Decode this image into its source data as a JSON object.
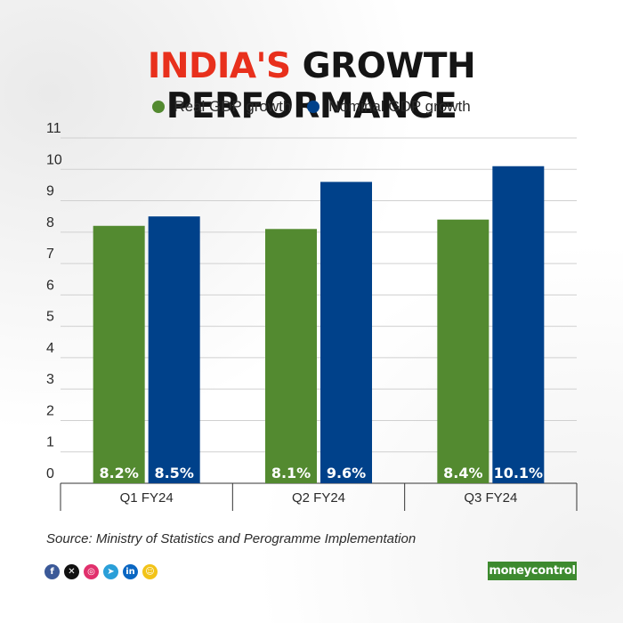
{
  "header": {
    "title_accent": "INDIA'S",
    "title_rest": "GROWTH PERFORMANCE"
  },
  "colors": {
    "real": "#538a30",
    "nominal": "#00418a",
    "accent": "#e8301c"
  },
  "chart_data": {
    "type": "bar",
    "title": "INDIA'S GROWTH PERFORMANCE",
    "categories": [
      "Q1 FY24",
      "Q2 FY24",
      "Q3 FY24"
    ],
    "series": [
      {
        "name": "Real GDP growth",
        "values": [
          8.2,
          8.1,
          8.4
        ],
        "labels": [
          "8.2%",
          "8.1%",
          "8.4%"
        ],
        "color": "#538a30"
      },
      {
        "name": "Nominal GDP growth",
        "values": [
          8.5,
          9.6,
          10.1
        ],
        "labels": [
          "8.5%",
          "9.6%",
          "10.1%"
        ],
        "color": "#00418a"
      }
    ],
    "yticks": [
      "0",
      "1",
      "2",
      "3",
      "4",
      "5",
      "6",
      "7",
      "8",
      "9",
      "10",
      "11"
    ],
    "ylim": [
      0,
      11
    ],
    "xlabel": "",
    "ylabel": "",
    "legend": "top-center",
    "grid": true
  },
  "footer": {
    "source": "Source: Ministry of Statistics and Perogramme Implementation",
    "brand": "moneycontrol",
    "social": [
      {
        "icon": "facebook-icon",
        "glyph": "f",
        "color": "#3b5998"
      },
      {
        "icon": "x-icon",
        "glyph": "✕",
        "color": "#111111"
      },
      {
        "icon": "instagram-icon",
        "glyph": "◎",
        "color": "#e1306c"
      },
      {
        "icon": "telegram-icon",
        "glyph": "➤",
        "color": "#2a9fd8"
      },
      {
        "icon": "linkedin-icon",
        "glyph": "in",
        "color": "#0a66c2"
      },
      {
        "icon": "snapchat-icon",
        "glyph": "☺",
        "color": "#f2c318"
      }
    ]
  }
}
